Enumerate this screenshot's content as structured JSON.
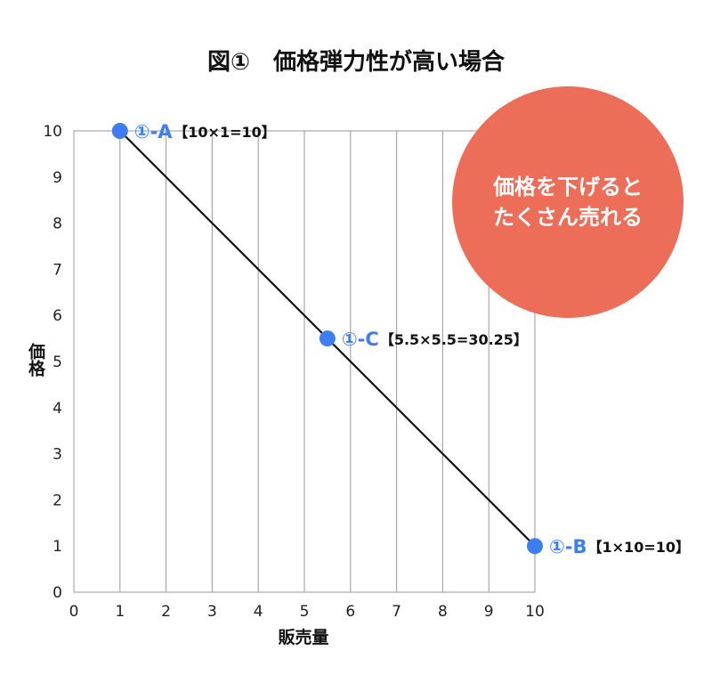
{
  "chart_data": {
    "type": "line",
    "title": "図①　価格弾力性が高い場合",
    "xlabel": "販売量",
    "ylabel": "価格",
    "xlim": [
      0,
      10
    ],
    "ylim": [
      0,
      10
    ],
    "xticks": [
      0,
      1,
      2,
      3,
      4,
      5,
      6,
      7,
      8,
      9,
      10
    ],
    "yticks": [
      0,
      1,
      2,
      3,
      4,
      5,
      6,
      7,
      8,
      9,
      10
    ],
    "grid": "vertical",
    "line": {
      "x": [
        1,
        10
      ],
      "y": [
        10,
        1
      ],
      "color": "#111111"
    },
    "points": [
      {
        "name": "①-A",
        "note": "【10×1=10】",
        "x": 1,
        "y": 10
      },
      {
        "name": "①-C",
        "note": "【5.5×5.5=30.25】",
        "x": 5.5,
        "y": 5.5
      },
      {
        "name": "①-B",
        "note": "【1×10=10】",
        "x": 10,
        "y": 1
      }
    ],
    "point_color": "#3d7ef0",
    "callout": {
      "lines": [
        "価格を下げると",
        "たくさん売れる"
      ],
      "color": "#ec6e58",
      "text_color": "#ffffff"
    }
  }
}
